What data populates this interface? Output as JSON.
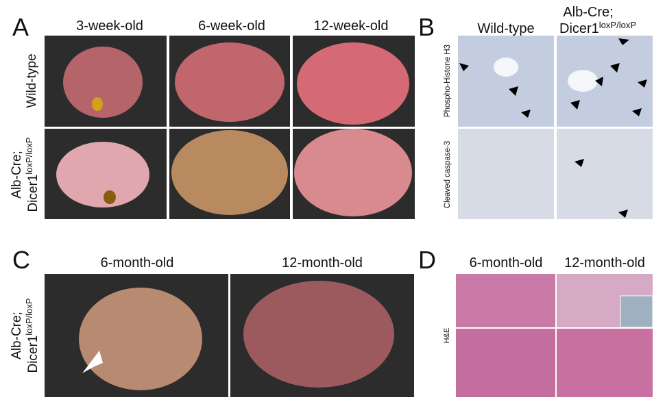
{
  "panels": [
    {
      "letter": "A",
      "columns": [
        "3-week-old",
        "6-week-old",
        "12-week-old"
      ],
      "rows": [
        "Wild-type",
        {
          "line1": "Alb-Cre;",
          "line2": "Dicer1",
          "sup": "loxP/loxP"
        }
      ]
    },
    {
      "letter": "B",
      "columns": [
        "Wild-type",
        {
          "line1": "Alb-Cre;",
          "line2": "Dicer1",
          "sup": "loxP/loxP"
        }
      ],
      "rows": [
        "Phospho-Histone H3",
        "Cleaved caspase-3"
      ]
    },
    {
      "letter": "C",
      "columns": [
        "6-month-old",
        "12-month-old"
      ],
      "rows": [
        {
          "line1": "Alb-Cre;",
          "line2": "Dicer1",
          "sup": "loxP/loxP"
        }
      ]
    },
    {
      "letter": "D",
      "columns": [
        "6-month-old",
        "12-month-old"
      ],
      "rows": [
        "H&E"
      ]
    }
  ]
}
